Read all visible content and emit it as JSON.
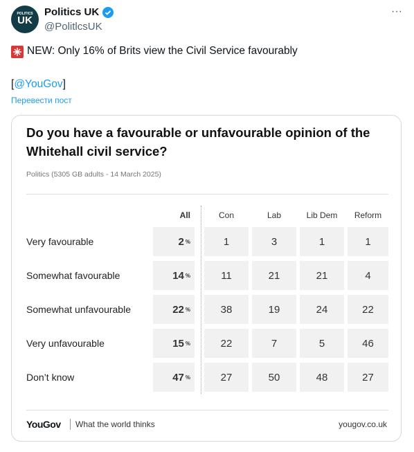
{
  "tweet": {
    "author": "Politics UK",
    "handle": "@PolitlcsUK",
    "avatar": {
      "top": "POLITICS",
      "main": "UK"
    },
    "text": "NEW: Only 16% of Brits view the Civil Service favourably",
    "mention_line": [
      "[",
      "@YouGov",
      "]"
    ],
    "translate": "Перевести пост"
  },
  "card": {
    "title": [
      "Do you have a favourable or unfavourable opinion of the",
      "Whitehall civil service?"
    ],
    "subtitle": "Politics (5305 GB adults - 14 March 2025)",
    "table": {
      "columns": [
        "All",
        "Con",
        "Lab",
        "Lib Dem",
        "Reform"
      ],
      "all_unit": "%",
      "rows": [
        {
          "label": "Very favourable",
          "all": 2,
          "values": [
            1,
            3,
            1,
            1
          ]
        },
        {
          "label": "Somewhat favourable",
          "all": 14,
          "values": [
            11,
            21,
            21,
            4
          ]
        },
        {
          "label": "Somewhat unfavourable",
          "all": 22,
          "values": [
            38,
            19,
            24,
            22
          ]
        },
        {
          "label": "Very unfavourable",
          "all": 15,
          "values": [
            22,
            7,
            5,
            46
          ]
        },
        {
          "label": "Don’t know",
          "all": 47,
          "values": [
            27,
            50,
            48,
            27
          ]
        }
      ]
    },
    "footer": {
      "brand": "YouGov",
      "tagline": "What the world thinks",
      "url": "yougov.co.uk"
    }
  }
}
